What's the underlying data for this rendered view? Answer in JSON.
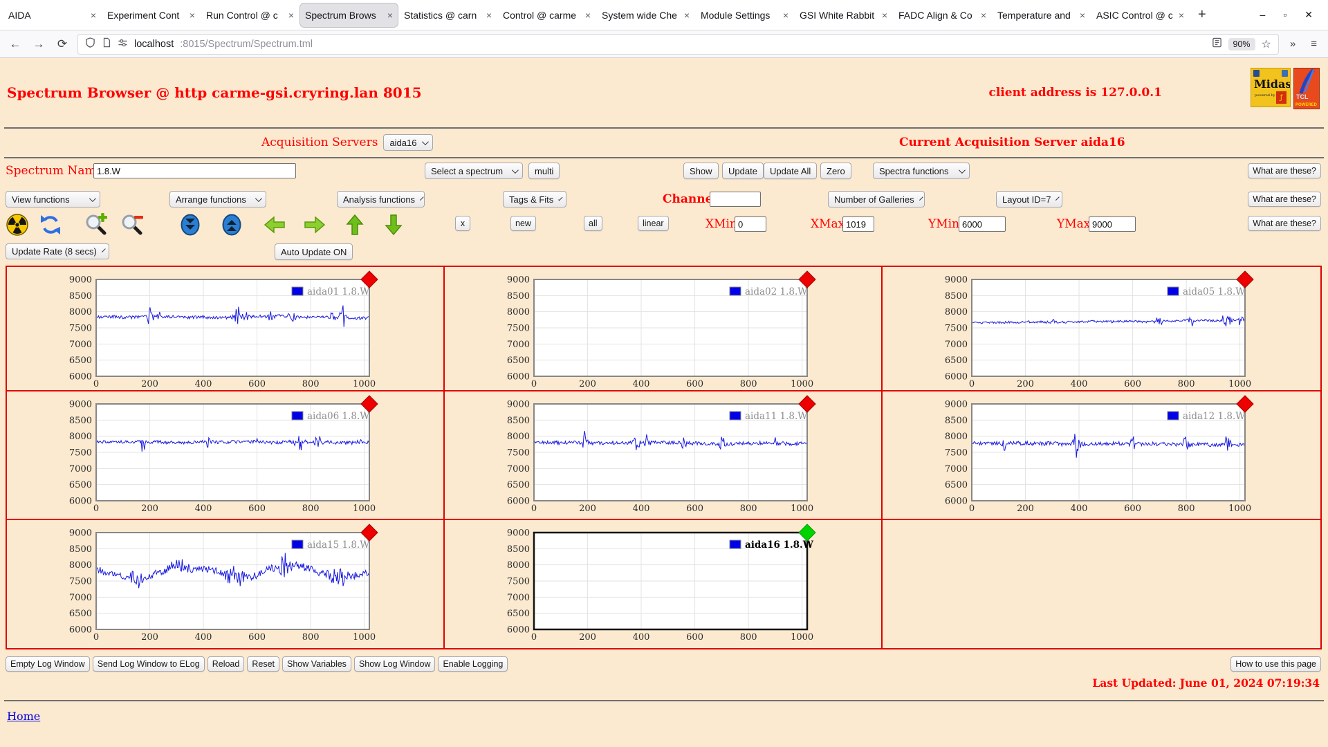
{
  "browser": {
    "tabs": [
      "AIDA",
      "Experiment Cont",
      "Run Control @ c",
      "Spectrum Brows",
      "Statistics @ carn",
      "Control @ carme",
      "System wide Che",
      "Module Settings",
      "GSI White Rabbit",
      "FADC Align & Co",
      "Temperature and",
      "ASIC Control @ c"
    ],
    "active_tab": 3,
    "tab_close_glyph": "×",
    "new_tab_glyph": "+",
    "window_controls": [
      "–",
      "▫",
      "✕"
    ],
    "nav": {
      "back": "←",
      "forward": "→",
      "reload": "⟳"
    },
    "url_host": "localhost",
    "url_path": ":8015/Spectrum/Spectrum.tml",
    "zoom_badge": "90%",
    "star_glyph": "☆",
    "overflow_glyph": "»",
    "menu_glyph": "≡"
  },
  "header": {
    "title": "Spectrum Browser @ http carme-gsi.cryring.lan 8015",
    "client": "client address is 127.0.0.1",
    "logos": {
      "midas_title": "Midas",
      "midas_sub": "powered by",
      "midas_f": "ƒ",
      "tcl_title": "TCL",
      "tcl_sub": "POWERED"
    }
  },
  "acquisition": {
    "label": "Acquisition Servers",
    "selected": "aida16",
    "current": "Current Acquisition Server aida16"
  },
  "spectrum_row": {
    "name_label": "Spectrum Name:",
    "name_value": "1.8.W",
    "select_placeholder": "Select a spectrum",
    "multi": "multi",
    "show": "Show",
    "update": "Update",
    "update_all": "Update All",
    "zero": "Zero",
    "spectra_functions": "Spectra functions",
    "what": "What are these?"
  },
  "functions_row": {
    "view": "View functions",
    "arrange": "Arrange functions",
    "analysis": "Analysis functions",
    "tags": "Tags & Fits",
    "channel_label": "Channel:",
    "channel_value": "",
    "galleries": "Number of Galleries",
    "layout": "Layout ID=7",
    "what": "What are these?"
  },
  "toolbar": {
    "icons": [
      "radiation-icon",
      "refresh-icon",
      "zoom-in-icon",
      "zoom-out-icon",
      "double-down-icon",
      "double-up-icon",
      "arrow-left-icon",
      "arrow-right-icon",
      "arrow-up-icon",
      "arrow-down-icon"
    ],
    "x_button": "x",
    "new_button": "new",
    "all_button": "all",
    "linear_button": "linear",
    "xmin_label": "XMin",
    "xmin": "0",
    "xmax_label": "XMax",
    "xmax": "1019",
    "ymin_label": "YMin",
    "ymin": "6000",
    "ymax_label": "YMax",
    "ymax": "9000",
    "what": "What are these?"
  },
  "update_row": {
    "rate": "Update Rate (8 secs)",
    "auto": "Auto Update ON"
  },
  "chart_data": {
    "type": "line",
    "x": {
      "min": 0,
      "max": 1019,
      "ticks": [
        0,
        200,
        400,
        600,
        800,
        1000
      ]
    },
    "y": {
      "min": 6000,
      "max": 9000,
      "ticks": [
        6000,
        6500,
        7000,
        7500,
        8000,
        8500,
        9000
      ]
    },
    "grid": true,
    "legend_position": "top-right",
    "line_color": "#1a1ae0",
    "panels": [
      {
        "name": "aida01 1.8.W",
        "has_data": true,
        "marker": "red",
        "seed": 1,
        "base": 7830,
        "noise": 45,
        "walk": 12,
        "trend": 0,
        "clusters": [
          [
            200,
            18,
            380
          ],
          [
            235,
            12,
            260
          ],
          [
            530,
            30,
            360
          ],
          [
            560,
            15,
            330
          ],
          [
            650,
            25,
            180
          ],
          [
            730,
            20,
            220
          ],
          [
            880,
            15,
            180
          ],
          [
            920,
            18,
            430
          ]
        ]
      },
      {
        "name": "aida02 1.8.W",
        "has_data": false,
        "marker": "red"
      },
      {
        "name": "aida05 1.8.W",
        "has_data": true,
        "marker": "red",
        "seed": 5,
        "base": 7650,
        "noise": 35,
        "walk": 10,
        "trend": 90,
        "clusters": [
          [
            300,
            12,
            120
          ],
          [
            700,
            25,
            150
          ],
          [
            820,
            20,
            200
          ],
          [
            950,
            30,
            260
          ],
          [
            1005,
            15,
            230
          ]
        ]
      },
      {
        "name": "aida06 1.8.W",
        "has_data": true,
        "marker": "red",
        "seed": 6,
        "base": 7810,
        "noise": 50,
        "walk": 12,
        "trend": 0,
        "clusters": [
          [
            175,
            12,
            400
          ],
          [
            420,
            15,
            200
          ],
          [
            600,
            10,
            180
          ],
          [
            760,
            25,
            330
          ],
          [
            830,
            20,
            280
          ],
          [
            980,
            12,
            300
          ]
        ]
      },
      {
        "name": "aida11 1.8.W",
        "has_data": true,
        "marker": "red",
        "seed": 11,
        "base": 7790,
        "noise": 55,
        "walk": 10,
        "trend": 0,
        "clusters": [
          [
            190,
            14,
            420
          ],
          [
            380,
            20,
            300
          ],
          [
            420,
            12,
            350
          ],
          [
            560,
            15,
            250
          ],
          [
            700,
            18,
            280
          ],
          [
            900,
            10,
            200
          ]
        ]
      },
      {
        "name": "aida12 1.8.W",
        "has_data": true,
        "marker": "red",
        "seed": 12,
        "base": 7770,
        "noise": 60,
        "walk": 12,
        "trend": 0,
        "clusters": [
          [
            120,
            15,
            280
          ],
          [
            390,
            18,
            400
          ],
          [
            600,
            20,
            250
          ],
          [
            800,
            15,
            300
          ],
          [
            950,
            20,
            320
          ]
        ]
      },
      {
        "name": "aida15 1.8.W",
        "has_data": true,
        "marker": "red",
        "seed": 15,
        "base": 7720,
        "noise": 115,
        "walk": 38,
        "trend": 0,
        "wander": 210,
        "wfreq": 2.6,
        "clusters": [
          [
            150,
            40,
            300
          ],
          [
            320,
            50,
            280
          ],
          [
            520,
            60,
            360
          ],
          [
            700,
            40,
            400
          ],
          [
            900,
            50,
            320
          ]
        ]
      },
      {
        "name": "aida16 1.8.W",
        "has_data": false,
        "marker": "green",
        "highlight": true
      },
      null
    ]
  },
  "footer": {
    "buttons": [
      "Empty Log Window",
      "Send Log Window to ELog",
      "Reload",
      "Reset",
      "Show Variables",
      "Show Log Window",
      "Enable Logging"
    ],
    "help_button": "How to use this page",
    "last_updated": "Last Updated: June 01, 2024 07:19:34",
    "home": "Home"
  }
}
